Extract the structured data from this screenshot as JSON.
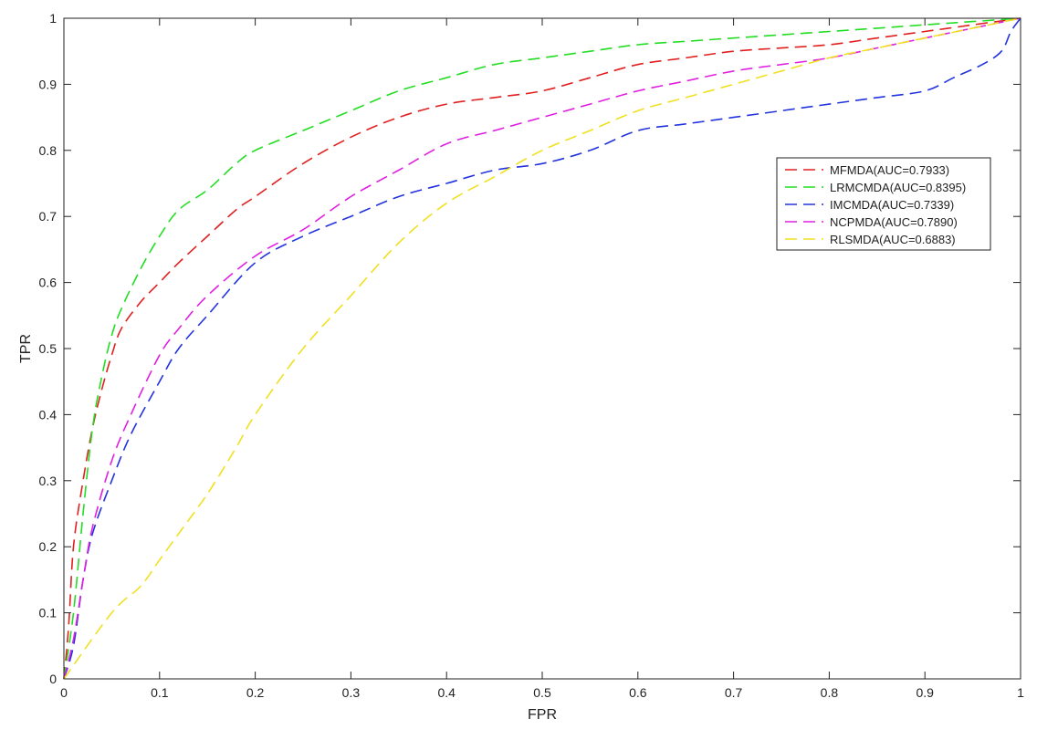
{
  "chart_data": {
    "type": "line",
    "title": "",
    "xlabel": "FPR",
    "ylabel": "TPR",
    "xlim": [
      0,
      1
    ],
    "ylim": [
      0,
      1
    ],
    "x_ticks": [
      "0",
      "0.1",
      "0.2",
      "0.3",
      "0.4",
      "0.5",
      "0.6",
      "0.7",
      "0.8",
      "0.9",
      "1"
    ],
    "y_ticks": [
      "0",
      "0.1",
      "0.2",
      "0.3",
      "0.4",
      "0.5",
      "0.6",
      "0.7",
      "0.8",
      "0.9",
      "1"
    ],
    "grid": false,
    "legend_position": "right",
    "line_style": "dashed",
    "series": [
      {
        "name": "MFMDA(AUC=0.7933)",
        "color": "#e02020",
        "x": [
          0,
          0.005,
          0.01,
          0.02,
          0.03,
          0.04,
          0.05,
          0.06,
          0.08,
          0.1,
          0.12,
          0.15,
          0.18,
          0.2,
          0.25,
          0.3,
          0.35,
          0.4,
          0.45,
          0.5,
          0.55,
          0.6,
          0.65,
          0.7,
          0.75,
          0.8,
          0.85,
          0.9,
          0.95,
          1
        ],
        "y": [
          0,
          0.08,
          0.2,
          0.3,
          0.38,
          0.44,
          0.49,
          0.53,
          0.57,
          0.6,
          0.63,
          0.67,
          0.71,
          0.73,
          0.78,
          0.82,
          0.85,
          0.87,
          0.88,
          0.89,
          0.91,
          0.93,
          0.94,
          0.95,
          0.955,
          0.96,
          0.97,
          0.98,
          0.99,
          1
        ]
      },
      {
        "name": "LRMCMDA(AUC=0.8395)",
        "color": "#22dd22",
        "x": [
          0,
          0.01,
          0.02,
          0.03,
          0.04,
          0.05,
          0.06,
          0.08,
          0.1,
          0.12,
          0.15,
          0.18,
          0.2,
          0.25,
          0.3,
          0.35,
          0.4,
          0.45,
          0.5,
          0.55,
          0.6,
          0.65,
          0.7,
          0.75,
          0.8,
          0.85,
          0.9,
          0.95,
          1
        ],
        "y": [
          0,
          0.1,
          0.25,
          0.38,
          0.46,
          0.52,
          0.56,
          0.62,
          0.67,
          0.71,
          0.74,
          0.78,
          0.8,
          0.83,
          0.86,
          0.89,
          0.91,
          0.93,
          0.94,
          0.95,
          0.96,
          0.965,
          0.97,
          0.975,
          0.98,
          0.985,
          0.99,
          0.995,
          1
        ]
      },
      {
        "name": "IMCMDA(AUC=0.7339)",
        "color": "#2233dd",
        "x": [
          0,
          0.01,
          0.02,
          0.03,
          0.05,
          0.07,
          0.1,
          0.12,
          0.15,
          0.2,
          0.25,
          0.3,
          0.35,
          0.4,
          0.45,
          0.5,
          0.55,
          0.6,
          0.65,
          0.7,
          0.75,
          0.8,
          0.85,
          0.9,
          0.93,
          0.96,
          0.98,
          0.99,
          1
        ],
        "y": [
          0,
          0.05,
          0.15,
          0.22,
          0.3,
          0.37,
          0.45,
          0.5,
          0.55,
          0.63,
          0.67,
          0.7,
          0.73,
          0.75,
          0.77,
          0.78,
          0.8,
          0.83,
          0.84,
          0.85,
          0.86,
          0.87,
          0.88,
          0.89,
          0.91,
          0.93,
          0.95,
          0.98,
          1
        ]
      },
      {
        "name": "NCPMDA(AUC=0.7890)",
        "color": "#e020e0",
        "x": [
          0,
          0.01,
          0.02,
          0.03,
          0.05,
          0.07,
          0.1,
          0.12,
          0.15,
          0.2,
          0.25,
          0.3,
          0.35,
          0.4,
          0.45,
          0.5,
          0.55,
          0.6,
          0.65,
          0.7,
          0.75,
          0.8,
          0.85,
          0.9,
          0.95,
          1
        ],
        "y": [
          0,
          0.06,
          0.15,
          0.23,
          0.33,
          0.4,
          0.49,
          0.53,
          0.58,
          0.64,
          0.68,
          0.73,
          0.77,
          0.81,
          0.83,
          0.85,
          0.87,
          0.89,
          0.905,
          0.92,
          0.93,
          0.94,
          0.955,
          0.97,
          0.985,
          1
        ]
      },
      {
        "name": "RLSMDA(AUC=0.6883)",
        "color": "#f0e020",
        "x": [
          0,
          0.05,
          0.08,
          0.1,
          0.12,
          0.15,
          0.18,
          0.2,
          0.25,
          0.3,
          0.35,
          0.4,
          0.45,
          0.5,
          0.55,
          0.6,
          0.65,
          0.7,
          0.75,
          0.8,
          0.85,
          0.9,
          0.95,
          1
        ],
        "y": [
          0,
          0.1,
          0.14,
          0.18,
          0.22,
          0.28,
          0.35,
          0.4,
          0.5,
          0.58,
          0.66,
          0.72,
          0.76,
          0.8,
          0.83,
          0.86,
          0.88,
          0.9,
          0.92,
          0.94,
          0.955,
          0.97,
          0.985,
          1
        ]
      }
    ]
  }
}
